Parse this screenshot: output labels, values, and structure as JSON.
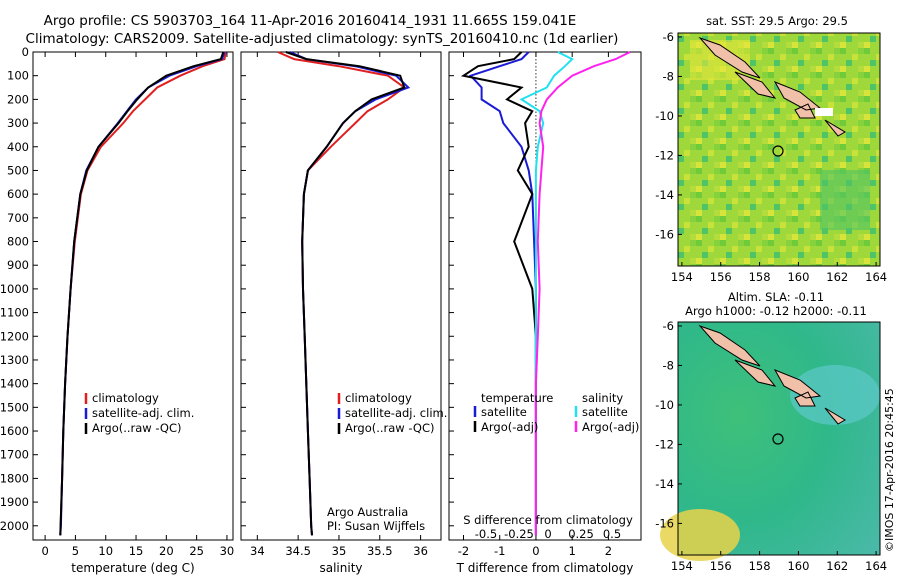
{
  "title_line1": "Argo profile: CS 5903703_164 11-Apr-2016 20160414_1931 11.665S 159.041E",
  "title_line2": "Climatology: CARS2009. Satellite-adjusted climatology: synTS_20160410.nc (1d earlier)",
  "colors": {
    "climatology": "#e02020",
    "satellite": "#1b1bd6",
    "argo": "#000000",
    "salinity_sat": "#22e0f0",
    "salinity_argo": "#ff22ee"
  },
  "chart_data": [
    {
      "type": "line",
      "panel": "temperature",
      "xlabel": "temperature (deg C)",
      "xlim": [
        -2,
        31
      ],
      "ylim": [
        2060,
        0
      ],
      "xticks": [
        0,
        5,
        10,
        15,
        20,
        25,
        30
      ],
      "yticks": [
        0,
        100,
        200,
        300,
        400,
        500,
        600,
        700,
        800,
        900,
        1000,
        1100,
        1200,
        1300,
        1400,
        1500,
        1600,
        1700,
        1800,
        1900,
        2000
      ],
      "legend": {
        "position": "lower-left",
        "entries": [
          "climatology",
          "satellite-adj. clim.",
          "Argo(..raw -QC)"
        ]
      },
      "series": [
        {
          "name": "climatology",
          "depth": [
            0,
            30,
            60,
            100,
            150,
            200,
            250,
            300,
            400,
            500,
            600,
            800,
            1000,
            1200,
            1400,
            1600,
            1800,
            2000,
            2040
          ],
          "values": [
            29.8,
            29.6,
            26,
            22.3,
            18.5,
            16.5,
            14.5,
            12.9,
            9.2,
            7,
            5.9,
            4.9,
            4.2,
            3.7,
            3.3,
            3,
            2.8,
            2.55,
            2.5
          ]
        },
        {
          "name": "satellite-adj. clim.",
          "depth": [
            0,
            30,
            60,
            100,
            150,
            200,
            250,
            300,
            400,
            500,
            600,
            800,
            1000,
            1200,
            1400,
            1600,
            1800,
            2000,
            2040
          ],
          "values": [
            29.6,
            29.2,
            25,
            20.5,
            17,
            15,
            13.5,
            12,
            8.8,
            6.8,
            5.8,
            4.8,
            4.2,
            3.7,
            3.3,
            3,
            2.8,
            2.6,
            2.5
          ]
        },
        {
          "name": "Argo(..raw -QC)",
          "depth": [
            0,
            30,
            60,
            100,
            150,
            200,
            250,
            300,
            400,
            500,
            600,
            800,
            1000,
            1200,
            1400,
            1600,
            1800,
            2000,
            2040
          ],
          "values": [
            29.4,
            29,
            24.5,
            20,
            17,
            15.2,
            13.6,
            12.1,
            8.8,
            6.9,
            5.8,
            4.8,
            4.2,
            3.7,
            3.3,
            3,
            2.8,
            2.55,
            2.5
          ]
        }
      ]
    },
    {
      "type": "line",
      "panel": "salinity",
      "xlabel": "salinity",
      "xlim": [
        33.8,
        36.25
      ],
      "ylim": [
        2060,
        0
      ],
      "xticks": [
        34,
        34.5,
        35,
        35.5,
        36
      ],
      "annotation_lines": [
        "Argo Australia",
        "PI: Susan Wijffels"
      ],
      "legend": {
        "position": "lower-left",
        "entries": [
          "climatology",
          "satellite-adj. clim.",
          "Argo(..raw -QC)"
        ]
      },
      "series": [
        {
          "name": "climatology",
          "depth": [
            0,
            30,
            60,
            100,
            150,
            200,
            250,
            300,
            400,
            500,
            600,
            800,
            1000,
            1200,
            1400,
            1600,
            1800,
            2000,
            2040
          ],
          "values": [
            34.25,
            34.45,
            35,
            35.6,
            35.8,
            35.6,
            35.35,
            35.2,
            34.9,
            34.62,
            34.57,
            34.55,
            34.56,
            34.58,
            34.6,
            34.62,
            34.64,
            34.66,
            34.67
          ]
        },
        {
          "name": "satellite-adj. clim.",
          "depth": [
            0,
            30,
            60,
            100,
            150,
            200,
            250,
            300,
            400,
            500,
            600,
            800,
            1000,
            1200,
            1400,
            1600,
            1800,
            2000,
            2040
          ],
          "values": [
            34.4,
            34.6,
            35.2,
            35.7,
            35.85,
            35.45,
            35.2,
            35.05,
            34.85,
            34.62,
            34.57,
            34.55,
            34.56,
            34.58,
            34.6,
            34.62,
            34.64,
            34.66,
            34.67
          ]
        },
        {
          "name": "Argo(..raw -QC)",
          "depth": [
            0,
            30,
            60,
            100,
            150,
            200,
            250,
            300,
            400,
            500,
            600,
            800,
            1000,
            1200,
            1400,
            1600,
            1800,
            2000,
            2040
          ],
          "values": [
            34.35,
            34.6,
            35.25,
            35.75,
            35.8,
            35.4,
            35.2,
            35.05,
            34.85,
            34.62,
            34.57,
            34.55,
            34.56,
            34.58,
            34.6,
            34.62,
            34.64,
            34.66,
            34.67
          ]
        }
      ]
    },
    {
      "type": "line",
      "panel": "difference",
      "xlabel": "T difference from climatology",
      "top_axis_label": "S difference from climatology",
      "xlim": [
        -2.4,
        2.9
      ],
      "ylim": [
        2060,
        0
      ],
      "xticks": [
        -2,
        -1,
        0,
        1,
        2
      ],
      "top_ticks": [
        "-0.5",
        "-0.25",
        "0",
        "0.25",
        "0.5"
      ],
      "legend": {
        "position": "lower-left",
        "entries": [
          "temperature",
          "satellite",
          "Argo(-adj)",
          "salinity",
          "satellite",
          "Argo(-adj)"
        ]
      },
      "series": [
        {
          "name": "temperature satellite",
          "depth": [
            0,
            30,
            60,
            100,
            150,
            200,
            250,
            300,
            400,
            500,
            600,
            800,
            1000,
            1200,
            1400,
            1600,
            1800,
            2000,
            2040
          ],
          "values": [
            -0.2,
            -0.4,
            -1,
            -1.8,
            -1.5,
            -1.5,
            -1,
            -0.9,
            -0.4,
            -0.2,
            -0.1,
            -0.05,
            0,
            0,
            0,
            0,
            0,
            0,
            0
          ]
        },
        {
          "name": "temperature Argo(-adj)",
          "depth": [
            0,
            30,
            60,
            100,
            150,
            200,
            250,
            300,
            400,
            500,
            600,
            800,
            1000,
            1200,
            1400,
            1600,
            1800,
            2000,
            2040
          ],
          "values": [
            -0.4,
            -0.6,
            -1.6,
            -2,
            -0.4,
            -0.8,
            -0.1,
            -0.3,
            -0.2,
            -0.5,
            -0.1,
            -0.6,
            -0.1,
            0,
            0,
            0,
            0,
            0,
            0
          ]
        },
        {
          "name": "salinity satellite",
          "depth": [
            0,
            30,
            60,
            100,
            150,
            200,
            250,
            300,
            400,
            500,
            600,
            800,
            1000,
            1200,
            1400,
            1600,
            1800,
            2000,
            2040
          ],
          "values": [
            0.6,
            1,
            0.8,
            0.5,
            0.3,
            -0.4,
            0.1,
            0.2,
            0.05,
            0,
            0,
            0,
            0,
            0,
            0,
            0,
            0,
            0,
            0
          ]
        },
        {
          "name": "salinity Argo(-adj)",
          "depth": [
            0,
            30,
            60,
            100,
            150,
            200,
            250,
            300,
            400,
            500,
            600,
            800,
            1000,
            1200,
            1400,
            1600,
            1800,
            2000,
            2040
          ],
          "values": [
            2.6,
            2.2,
            1.6,
            1,
            0.6,
            0.3,
            0.15,
            0.1,
            0.2,
            0.15,
            0.1,
            0.05,
            0.1,
            0.05,
            0,
            0,
            0,
            0,
            0
          ]
        }
      ]
    },
    {
      "type": "heatmap",
      "panel": "sst_map",
      "title": "sat. SST: 29.5 Argo: 29.5",
      "xlim": [
        153.8,
        164.2
      ],
      "ylim": [
        -17.6,
        -5.8
      ],
      "xticks": [
        154,
        156,
        158,
        160,
        162,
        164
      ],
      "yticks": [
        -6,
        -8,
        -10,
        -12,
        -14,
        -16
      ],
      "float_position": {
        "lon": 159.041,
        "lat": -11.665
      }
    },
    {
      "type": "heatmap",
      "panel": "sla_map",
      "title_line1": "Altim. SLA: -0.11",
      "title_line2": "Argo h1000: -0.12 h2000: -0.11",
      "xlim": [
        153.8,
        164.2
      ],
      "ylim": [
        -17.6,
        -5.8
      ],
      "xticks": [
        154,
        156,
        158,
        160,
        162,
        164
      ],
      "yticks": [
        -6,
        -8,
        -10,
        -12,
        -14,
        -16
      ],
      "float_position": {
        "lon": 159.041,
        "lat": -11.665
      }
    }
  ],
  "credit": "©IMOS 17-Apr-2016 20:45:45"
}
